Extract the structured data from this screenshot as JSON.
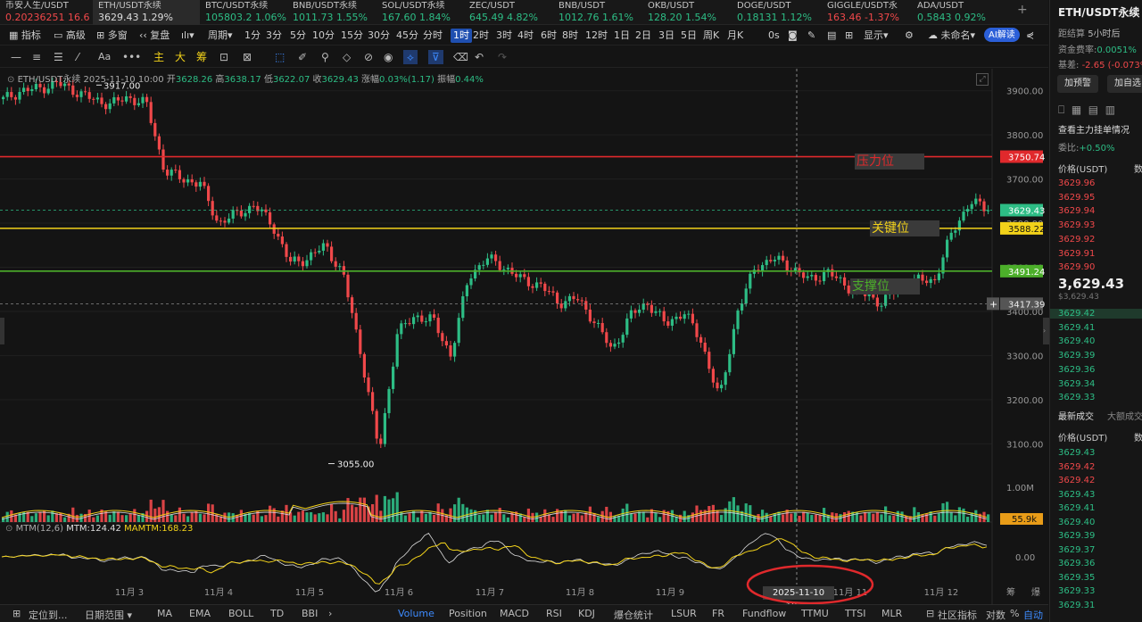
{
  "tickers": [
    {
      "name": "币安人生/USDT",
      "price": "0.20236251",
      "chg": "16.6",
      "dir": "dn"
    },
    {
      "name": "ETH/USDT永续",
      "price": "3629.43",
      "chg": "1.29%",
      "dir": "up",
      "active": true
    },
    {
      "name": "BTC/USDT永续",
      "price": "105803.2",
      "chg": "1.06%",
      "dir": "up"
    },
    {
      "name": "BNB/USDT永续",
      "price": "1011.73",
      "chg": "1.55%",
      "dir": "up"
    },
    {
      "name": "SOL/USDT永续",
      "price": "167.60",
      "chg": "1.84%",
      "dir": "up"
    },
    {
      "name": "ZEC/USDT",
      "price": "645.49",
      "chg": "4.82%",
      "dir": "up"
    },
    {
      "name": "BNB/USDT",
      "price": "1012.76",
      "chg": "1.61%",
      "dir": "up"
    },
    {
      "name": "OKB/USDT",
      "price": "128.20",
      "chg": "1.54%",
      "dir": "up"
    },
    {
      "name": "DOGE/USDT",
      "price": "0.18131",
      "chg": "1.12%",
      "dir": "up"
    },
    {
      "name": "GIGGLE/USDT永",
      "price": "163.46",
      "chg": "-1.37%",
      "dir": "dn"
    },
    {
      "name": "ADA/USDT",
      "price": "0.5843",
      "chg": "0.92%",
      "dir": "up"
    }
  ],
  "toolbar": {
    "indicators": "指标",
    "advanced": "高级",
    "multi": "多窗",
    "replay": "复盘",
    "period": "周期",
    "intervals": [
      "1分",
      "3分",
      "5分",
      "10分",
      "15分",
      "30分",
      "45分",
      "分时",
      "1时",
      "2时",
      "3时",
      "4时",
      "6时",
      "8时",
      "12时",
      "1日",
      "2日",
      "3日",
      "5日",
      "周K",
      "月K"
    ],
    "selected": "1时",
    "seconds": "0s",
    "display": "显示",
    "unnamed": "未命名",
    "ai": "AI解读"
  },
  "drawbar": {
    "labels": [
      "Aa",
      "主",
      "大",
      "筹"
    ]
  },
  "legend": {
    "symbol": "ETH/USDT永续",
    "time": "2025-11-10 10:00",
    "open_l": "开",
    "open": "3628.26",
    "high_l": "高",
    "high": "3638.17",
    "low_l": "低",
    "low": "3622.07",
    "close_l": "收",
    "close": "3629.43",
    "chg_l": "涨幅",
    "chg": "0.03%(1.17)",
    "amp_l": "振幅",
    "amp": "0.44%"
  },
  "annotations": {
    "resistance": "压力位",
    "key": "关键位",
    "support": "支撑位",
    "high_marker": "3917.00",
    "low_marker": "3055.00"
  },
  "axis": {
    "prices": [
      "3900.00",
      "3800.00",
      "3700.00",
      "3600.00",
      "3500.00",
      "3400.00",
      "3300.00",
      "3200.00",
      "3100.00"
    ],
    "dates": [
      "11月 3",
      "11月 4",
      "11月 5",
      "11月 6",
      "11月 7",
      "11月 8",
      "11月 9",
      "11月 11",
      "11月 12"
    ],
    "crosshair_time": "2025-11-10 10:00",
    "vol_label": "1.00M",
    "vol_current": "55.9k",
    "mtm_zero": "0.00",
    "ext": "筹",
    "ext2": "爆"
  },
  "levels": {
    "resistance": "3750.74",
    "current": "3629.43",
    "key": "3588.22",
    "support": "3491.24",
    "cursor": "3417.39"
  },
  "mtm": {
    "name": "MTM(12,6)",
    "mtm": "MTM:124.42",
    "mamtm": "MAMTM:168.23"
  },
  "bottom": {
    "left": [
      "定位到...",
      "日期范围"
    ],
    "inds": [
      "MA",
      "EMA",
      "BOLL",
      "TD",
      "BBI"
    ],
    "sub": [
      "Volume",
      "Position",
      "MACD",
      "RSI",
      "KDJ",
      "爆仓统计",
      "LSUR",
      "FR",
      "Fundflow",
      "TTMU",
      "TTSI",
      "MLR"
    ],
    "right": [
      "社区指标",
      "对数",
      "%",
      "自动"
    ]
  },
  "side": {
    "title": "ETH/USDT永续",
    "settle_l": "距结算",
    "settle": "5小时后",
    "fund_l": "资金费率:",
    "fund": "0.0051%",
    "basis_l": "基差:",
    "basis": "-2.65 (-0.073%)",
    "btn1": "加预警",
    "btn2": "加自选",
    "watch": "查看主力挂单情况",
    "ratio_l": "委比:",
    "ratio": "+0.50%",
    "col_price": "价格(USDT)",
    "col_qty": "数",
    "asks": [
      "3629.96",
      "3629.95",
      "3629.94",
      "3629.93",
      "3629.92",
      "3629.91",
      "3629.90"
    ],
    "last": "3,629.43",
    "last_sub": "$3,629.43",
    "bids": [
      "3629.42",
      "3629.41",
      "3629.40",
      "3629.39",
      "3629.36",
      "3629.34",
      "3629.33"
    ],
    "trades_title": "最新成交",
    "trades_big": "大额成交",
    "trades": [
      [
        "3629.43",
        "up"
      ],
      [
        "3629.42",
        "dn"
      ],
      [
        "3629.42",
        "dn"
      ],
      [
        "3629.43",
        "up"
      ],
      [
        "3629.41",
        "up"
      ],
      [
        "3629.40",
        "up"
      ],
      [
        "3629.39",
        "up"
      ],
      [
        "3629.37",
        "up"
      ],
      [
        "3629.36",
        "up"
      ],
      [
        "3629.35",
        "up"
      ],
      [
        "3629.33",
        "up"
      ],
      [
        "3629.31",
        "up"
      ]
    ]
  },
  "chart_data": {
    "type": "candlestick",
    "x": [
      "11月 3",
      "11月 4",
      "11月 5",
      "11月 6",
      "11月 7",
      "11月 8",
      "11月 9",
      "11月 10",
      "11月 11",
      "11月 12"
    ],
    "close_path": [
      3880,
      3900,
      3905,
      3917,
      3900,
      3880,
      3870,
      3885,
      3870,
      3720,
      3700,
      3690,
      3600,
      3620,
      3640,
      3600,
      3510,
      3520,
      3550,
      3480,
      3300,
      3080,
      3350,
      3390,
      3380,
      3300,
      3480,
      3520,
      3500,
      3470,
      3460,
      3420,
      3430,
      3380,
      3310,
      3390,
      3420,
      3370,
      3400,
      3330,
      3200,
      3400,
      3500,
      3520,
      3500,
      3470,
      3490,
      3460,
      3440,
      3420,
      3450,
      3470,
      3470,
      3580,
      3650,
      3629.43
    ],
    "colors": {
      "up": "#2dbd85",
      "down": "#f0484a"
    },
    "y_range": [
      3050,
      3950
    ]
  },
  "colors": {
    "bg": "#141414",
    "resistance": "#e0292c",
    "key": "#f2d21a",
    "support": "#4caf2a",
    "accent": "#1f4fb0"
  }
}
